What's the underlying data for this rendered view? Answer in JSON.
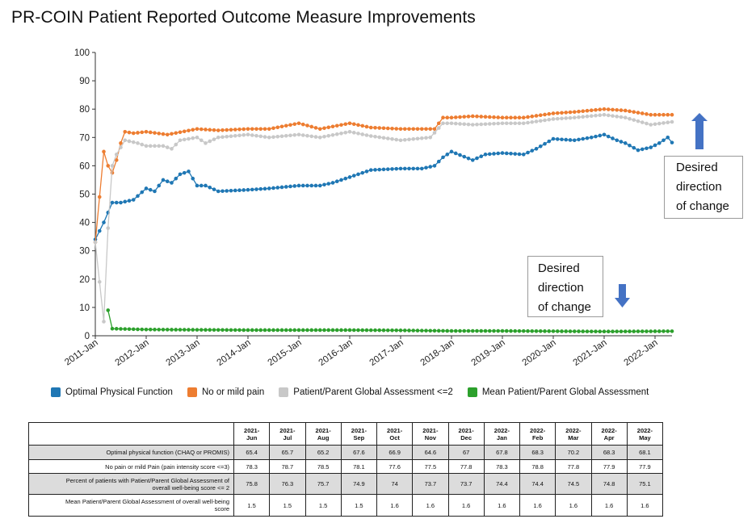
{
  "title": "PR-COIN Patient Reported Outcome Measure Improvements",
  "callouts": {
    "up": [
      "Desired",
      "direction",
      "of change"
    ],
    "down": [
      "Desired",
      "direction",
      "of change"
    ]
  },
  "arrows": {
    "up": "up-arrow-icon",
    "down": "down-arrow-icon",
    "color": "#4472c4"
  },
  "colors": {
    "optimal": "#1f77b4",
    "pain": "#ed7d31",
    "global": "#c8c8c8",
    "mean": "#2ca02c"
  },
  "legend": [
    {
      "key": "optimal",
      "label": "Optimal Physical Function"
    },
    {
      "key": "pain",
      "label": "No or mild pain"
    },
    {
      "key": "global",
      "label": "Patient/Parent Global Assessment <=2"
    },
    {
      "key": "mean",
      "label": "Mean Patient/Parent Global Assessment"
    }
  ],
  "table": {
    "columns": [
      [
        "2021-",
        "Jun"
      ],
      [
        "2021-",
        "Jul"
      ],
      [
        "2021-",
        "Aug"
      ],
      [
        "2021-",
        "Sep"
      ],
      [
        "2021-",
        "Oct"
      ],
      [
        "2021-",
        "Nov"
      ],
      [
        "2021-",
        "Dec"
      ],
      [
        "2022-",
        "Jan"
      ],
      [
        "2022-",
        "Feb"
      ],
      [
        "2022-",
        "Mar"
      ],
      [
        "2022-",
        "Apr"
      ],
      [
        "2022-",
        "May"
      ]
    ],
    "rows": [
      {
        "label": [
          "Optimal physical function (CHAQ or PROMIS)"
        ],
        "shade": true,
        "values": [
          "65.4",
          "65.7",
          "65.2",
          "67.6",
          "66.9",
          "64.6",
          "67",
          "67.8",
          "68.3",
          "70.2",
          "68.3",
          "68.1"
        ]
      },
      {
        "label": [
          "No pain or mild Pain (pain intensity score <=3)"
        ],
        "shade": false,
        "values": [
          "78.3",
          "78.7",
          "78.5",
          "78.1",
          "77.6",
          "77.5",
          "77.8",
          "78.3",
          "78.8",
          "77.8",
          "77.9",
          "77.9"
        ]
      },
      {
        "label": [
          "Percent of patients with Patient/Parent Global Assessment of",
          "overall well-being score <= 2"
        ],
        "shade": true,
        "values": [
          "75.8",
          "76.3",
          "75.7",
          "74.9",
          "74",
          "73.7",
          "73.7",
          "74.4",
          "74.4",
          "74.5",
          "74.8",
          "75.1"
        ]
      },
      {
        "label": [
          "Mean Patient/Parent Global Assessment of overall well-being",
          "score"
        ],
        "shade": false,
        "values": [
          "1.5",
          "1.5",
          "1.5",
          "1.5",
          "1.6",
          "1.6",
          "1.6",
          "1.6",
          "1.6",
          "1.6",
          "1.6",
          "1.6"
        ]
      }
    ]
  },
  "chart_data": {
    "type": "line",
    "ylim": [
      0,
      100
    ],
    "yticks": [
      0,
      10,
      20,
      30,
      40,
      50,
      60,
      70,
      80,
      90,
      100
    ],
    "xticks": [
      "2011-Jan",
      "2012-Jan",
      "2013-Jan",
      "2014-Jan",
      "2015-Jan",
      "2016-Jan",
      "2017-Jan",
      "2018-Jan",
      "2019-Jan",
      "2020-Jan",
      "2021-Jan",
      "2022-Jan"
    ],
    "x_start": "2011-Jan",
    "x_end": "2022-May",
    "grid": false,
    "legend_position": "bottom",
    "series": [
      {
        "key": "optimal",
        "name": "Optimal Physical Function",
        "anchors": [
          [
            "2011-Jan",
            34
          ],
          [
            "2011-Mar",
            40
          ],
          [
            "2011-May",
            47
          ],
          [
            "2011-Jul",
            47
          ],
          [
            "2011-Oct",
            48
          ],
          [
            "2012-Jan",
            52
          ],
          [
            "2012-Mar",
            51
          ],
          [
            "2012-May",
            55
          ],
          [
            "2012-Jul",
            54
          ],
          [
            "2012-Sep",
            57
          ],
          [
            "2012-Nov",
            58
          ],
          [
            "2013-Jan",
            53
          ],
          [
            "2013-Mar",
            53
          ],
          [
            "2013-Jun",
            51
          ],
          [
            "2014-Jan",
            51.5
          ],
          [
            "2014-Jun",
            52
          ],
          [
            "2015-Jan",
            53
          ],
          [
            "2015-Jun",
            53
          ],
          [
            "2015-Sep",
            54
          ],
          [
            "2016-Jan",
            56
          ],
          [
            "2016-Jun",
            58.5
          ],
          [
            "2017-Jan",
            59
          ],
          [
            "2017-Jun",
            59
          ],
          [
            "2017-Sep",
            60
          ],
          [
            "2017-Nov",
            63
          ],
          [
            "2018-Jan",
            65
          ],
          [
            "2018-Jun",
            62
          ],
          [
            "2018-Sep",
            64
          ],
          [
            "2019-Jan",
            64.5
          ],
          [
            "2019-Jun",
            64
          ],
          [
            "2019-Sep",
            66
          ],
          [
            "2020-Jan",
            69.5
          ],
          [
            "2020-Jun",
            69
          ],
          [
            "2020-Oct",
            70
          ],
          [
            "2021-Jan",
            71
          ],
          [
            "2021-Apr",
            69
          ],
          [
            "2021-Jun",
            68
          ],
          [
            "2021-Sep",
            65.5
          ],
          [
            "2021-Dec",
            66.5
          ],
          [
            "2022-Feb",
            68
          ],
          [
            "2022-Apr",
            70
          ],
          [
            "2022-May",
            68.2
          ]
        ]
      },
      {
        "key": "pain",
        "name": "No or mild pain",
        "anchors": [
          [
            "2011-Jan",
            33
          ],
          [
            "2011-Mar",
            65
          ],
          [
            "2011-Apr",
            60
          ],
          [
            "2011-May",
            57.5
          ],
          [
            "2011-Jun",
            62
          ],
          [
            "2011-Jul",
            68
          ],
          [
            "2011-Aug",
            72
          ],
          [
            "2011-Oct",
            71.5
          ],
          [
            "2012-Jan",
            72
          ],
          [
            "2012-Jun",
            71
          ],
          [
            "2013-Jan",
            73
          ],
          [
            "2013-Jun",
            72.5
          ],
          [
            "2014-Jan",
            73
          ],
          [
            "2014-Jun",
            73
          ],
          [
            "2015-Jan",
            75
          ],
          [
            "2015-Jun",
            73
          ],
          [
            "2016-Jan",
            75
          ],
          [
            "2016-Jun",
            73.5
          ],
          [
            "2017-Jan",
            73
          ],
          [
            "2017-Sep",
            73
          ],
          [
            "2017-Nov",
            77
          ],
          [
            "2018-Jan",
            77
          ],
          [
            "2018-Jun",
            77.5
          ],
          [
            "2019-Jan",
            77
          ],
          [
            "2019-Jun",
            77
          ],
          [
            "2020-Jan",
            78.5
          ],
          [
            "2020-Jun",
            79
          ],
          [
            "2021-Jan",
            80
          ],
          [
            "2021-Jun",
            79.5
          ],
          [
            "2021-Dec",
            78
          ],
          [
            "2022-May",
            78
          ]
        ]
      },
      {
        "key": "global",
        "name": "Patient/Parent Global Assessment <=2",
        "anchors": [
          [
            "2011-Jan",
            33
          ],
          [
            "2011-Mar",
            5
          ],
          [
            "2011-Apr",
            38
          ],
          [
            "2011-May",
            60
          ],
          [
            "2011-Jun",
            64
          ],
          [
            "2011-Aug",
            69
          ],
          [
            "2011-Nov",
            68
          ],
          [
            "2012-Jan",
            67
          ],
          [
            "2012-May",
            67
          ],
          [
            "2012-Jul",
            66
          ],
          [
            "2012-Sep",
            69
          ],
          [
            "2013-Jan",
            70
          ],
          [
            "2013-Mar",
            68
          ],
          [
            "2013-Jun",
            70
          ],
          [
            "2014-Jan",
            71
          ],
          [
            "2014-Jun",
            70
          ],
          [
            "2015-Jan",
            71
          ],
          [
            "2015-Jun",
            70
          ],
          [
            "2016-Jan",
            72
          ],
          [
            "2016-Jun",
            70.5
          ],
          [
            "2017-Jan",
            69
          ],
          [
            "2017-Aug",
            70
          ],
          [
            "2017-Nov",
            75
          ],
          [
            "2018-Jan",
            75
          ],
          [
            "2018-Jun",
            74.5
          ],
          [
            "2019-Jan",
            75
          ],
          [
            "2019-Jun",
            75
          ],
          [
            "2020-Jan",
            76.5
          ],
          [
            "2020-Jun",
            77
          ],
          [
            "2021-Jan",
            78
          ],
          [
            "2021-Jun",
            77
          ],
          [
            "2021-Dec",
            74.5
          ],
          [
            "2022-May",
            75.5
          ]
        ]
      },
      {
        "key": "mean",
        "name": "Mean Patient/Parent Global Assessment",
        "anchors": [
          [
            "2011-Apr",
            9
          ],
          [
            "2011-May",
            2.5
          ],
          [
            "2012-Jan",
            2.2
          ],
          [
            "2013-Jan",
            2.1
          ],
          [
            "2014-Jan",
            2
          ],
          [
            "2015-Jan",
            2
          ],
          [
            "2016-Jan",
            2
          ],
          [
            "2017-Jan",
            1.9
          ],
          [
            "2018-Jan",
            1.7
          ],
          [
            "2019-Jan",
            1.7
          ],
          [
            "2020-Jan",
            1.6
          ],
          [
            "2021-Jan",
            1.5
          ],
          [
            "2022-May",
            1.6
          ]
        ]
      }
    ]
  }
}
